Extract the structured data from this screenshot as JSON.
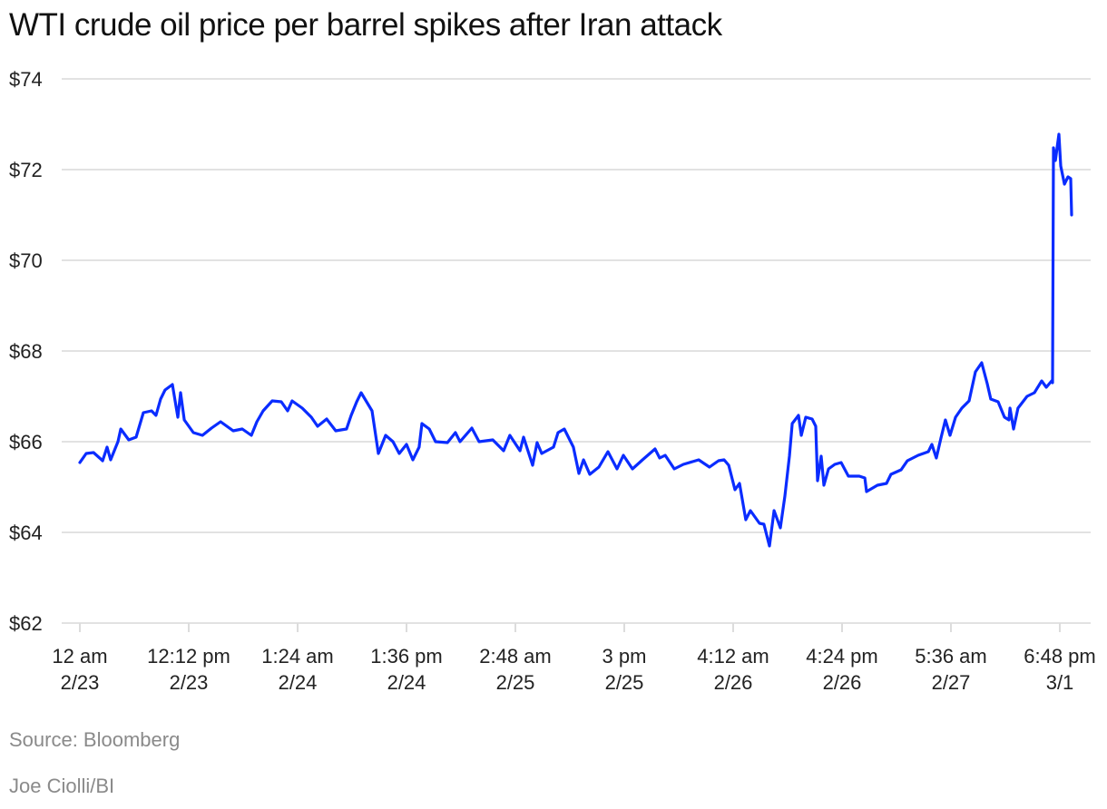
{
  "chart_data": {
    "type": "line",
    "title": "WTI crude oil price per barrel spikes after Iran attack",
    "xlabel": "",
    "ylabel": "",
    "ylim": [
      62,
      74
    ],
    "y_ticks": [
      {
        "value": 62,
        "label": "$62"
      },
      {
        "value": 64,
        "label": "$64"
      },
      {
        "value": 66,
        "label": "$66"
      },
      {
        "value": 68,
        "label": "$68"
      },
      {
        "value": 70,
        "label": "$70"
      },
      {
        "value": 72,
        "label": "$72"
      },
      {
        "value": 74,
        "label": "$74"
      }
    ],
    "x_ticks": [
      {
        "time": "2/23 00:00",
        "line1": "12 am",
        "line2": "2/23"
      },
      {
        "time": "2/23 12:12",
        "line1": "12:12 pm",
        "line2": "2/23"
      },
      {
        "time": "2/24 01:24",
        "line1": "1:24 am",
        "line2": "2/24"
      },
      {
        "time": "2/24 13:36",
        "line1": "1:36 pm",
        "line2": "2/24"
      },
      {
        "time": "2/25 02:48",
        "line1": "2:48 am",
        "line2": "2/25"
      },
      {
        "time": "2/25 15:00",
        "line1": "3 pm",
        "line2": "2/25"
      },
      {
        "time": "2/26 04:12",
        "line1": "4:12 am",
        "line2": "2/26"
      },
      {
        "time": "2/26 16:24",
        "line1": "4:24 pm",
        "line2": "2/26"
      },
      {
        "time": "2/27 05:36",
        "line1": "5:36 am",
        "line2": "2/27"
      },
      {
        "time": "3/1 18:48",
        "line1": "6:48 pm",
        "line2": "3/1"
      }
    ],
    "grid": true,
    "line_color": "#0a2cff",
    "series": [
      {
        "points": [
          [
            "2/23 00:00",
            65.54
          ],
          [
            "2/23 00:43",
            65.74
          ],
          [
            "2/23 01:32",
            65.76
          ],
          [
            "2/23 02:33",
            65.58
          ],
          [
            "2/23 03:03",
            65.88
          ],
          [
            "2/23 03:27",
            65.6
          ],
          [
            "2/23 04:16",
            66.0
          ],
          [
            "2/23 04:35",
            66.28
          ],
          [
            "2/23 05:29",
            66.04
          ],
          [
            "2/23 06:18",
            66.1
          ],
          [
            "2/23 07:07",
            66.64
          ],
          [
            "2/23 08:02",
            66.68
          ],
          [
            "2/23 08:32",
            66.58
          ],
          [
            "2/23 09:03",
            66.94
          ],
          [
            "2/23 09:33",
            67.14
          ],
          [
            "2/23 10:22",
            67.26
          ],
          [
            "2/23 10:59",
            66.54
          ],
          [
            "2/23 11:17",
            67.08
          ],
          [
            "2/23 11:42",
            66.48
          ],
          [
            "2/23 12:43",
            66.2
          ],
          [
            "2/23 13:44",
            66.14
          ],
          [
            "2/23 14:45",
            66.3
          ],
          [
            "2/23 15:46",
            66.44
          ],
          [
            "2/23 18:11",
            66.24
          ],
          [
            "2/23 19:12",
            66.28
          ],
          [
            "2/23 20:13",
            66.14
          ],
          [
            "2/23 20:50",
            66.44
          ],
          [
            "2/23 21:32",
            66.68
          ],
          [
            "2/23 22:33",
            66.9
          ],
          [
            "2/23 23:34",
            66.88
          ],
          [
            "2/24 00:17",
            66.68
          ],
          [
            "2/24 00:47",
            66.9
          ],
          [
            "2/24 01:55",
            66.74
          ],
          [
            "2/24 02:56",
            66.54
          ],
          [
            "2/24 03:38",
            66.34
          ],
          [
            "2/24 04:39",
            66.5
          ],
          [
            "2/24 05:40",
            66.24
          ],
          [
            "2/24 06:53",
            66.28
          ],
          [
            "2/24 07:24",
            66.58
          ],
          [
            "2/24 08:01",
            66.88
          ],
          [
            "2/24 08:31",
            67.08
          ],
          [
            "2/24 09:44",
            66.68
          ],
          [
            "2/24 10:27",
            65.74
          ],
          [
            "2/24 11:16",
            66.14
          ],
          [
            "2/24 12:05",
            66.0
          ],
          [
            "2/24 12:47",
            65.74
          ],
          [
            "2/24 13:36",
            65.94
          ],
          [
            "2/24 14:19",
            65.6
          ],
          [
            "2/24 15:01",
            65.88
          ],
          [
            "2/24 15:20",
            66.4
          ],
          [
            "2/24 16:09",
            66.28
          ],
          [
            "2/24 16:51",
            66.0
          ],
          [
            "2/24 19:11",
            65.98
          ],
          [
            "2/24 20:05",
            66.2
          ],
          [
            "2/24 20:36",
            66.0
          ],
          [
            "2/24 21:55",
            66.3
          ],
          [
            "2/24 22:44",
            66.0
          ],
          [
            "2/25 00:16",
            66.04
          ],
          [
            "2/25 01:29",
            65.8
          ],
          [
            "2/25 02:11",
            66.14
          ],
          [
            "2/25 03:19",
            65.8
          ],
          [
            "2/25 03:43",
            66.1
          ],
          [
            "2/25 04:44",
            65.48
          ],
          [
            "2/25 05:14",
            65.98
          ],
          [
            "2/25 05:45",
            65.74
          ],
          [
            "2/25 07:04",
            65.88
          ],
          [
            "2/25 07:35",
            66.2
          ],
          [
            "2/25 08:17",
            66.28
          ],
          [
            "2/25 09:18",
            65.88
          ],
          [
            "2/25 09:55",
            65.3
          ],
          [
            "2/25 10:26",
            65.6
          ],
          [
            "2/25 11:08",
            65.28
          ],
          [
            "2/25 12:09",
            65.44
          ],
          [
            "2/25 13:10",
            65.78
          ],
          [
            "2/25 14:11",
            65.4
          ],
          [
            "2/25 14:54",
            65.7
          ],
          [
            "2/25 15:55",
            65.4
          ],
          [
            "2/25 16:56",
            65.58
          ],
          [
            "2/25 19:27",
            65.84
          ],
          [
            "2/25 19:58",
            65.64
          ],
          [
            "2/25 20:35",
            65.7
          ],
          [
            "2/25 21:36",
            65.4
          ],
          [
            "2/25 22:37",
            65.5
          ],
          [
            "2/26 00:20",
            65.6
          ],
          [
            "2/26 01:33",
            65.44
          ],
          [
            "2/26 02:34",
            65.58
          ],
          [
            "2/26 03:11",
            65.6
          ],
          [
            "2/26 03:42",
            65.48
          ],
          [
            "2/26 04:24",
            64.94
          ],
          [
            "2/26 04:55",
            65.08
          ],
          [
            "2/26 05:37",
            64.28
          ],
          [
            "2/26 06:08",
            64.48
          ],
          [
            "2/26 07:09",
            64.2
          ],
          [
            "2/26 07:39",
            64.18
          ],
          [
            "2/26 08:16",
            63.7
          ],
          [
            "2/26 08:47",
            64.48
          ],
          [
            "2/26 09:29",
            64.1
          ],
          [
            "2/26 10:00",
            64.8
          ],
          [
            "2/26 10:30",
            65.68
          ],
          [
            "2/26 10:49",
            66.4
          ],
          [
            "2/26 11:31",
            66.58
          ],
          [
            "2/26 11:50",
            66.14
          ],
          [
            "2/26 12:20",
            66.54
          ],
          [
            "2/26 13:03",
            66.5
          ],
          [
            "2/26 13:27",
            66.34
          ],
          [
            "2/26 13:39",
            65.14
          ],
          [
            "2/26 14:04",
            65.68
          ],
          [
            "2/26 14:22",
            65.04
          ],
          [
            "2/26 14:53",
            65.4
          ],
          [
            "2/26 15:35",
            65.5
          ],
          [
            "2/26 16:18",
            65.54
          ],
          [
            "2/26 18:07",
            65.24
          ],
          [
            "2/26 19:20",
            65.24
          ],
          [
            "2/26 19:57",
            65.2
          ],
          [
            "2/26 20:09",
            64.9
          ],
          [
            "2/26 21:22",
            65.04
          ],
          [
            "2/26 22:23",
            65.08
          ],
          [
            "2/26 22:53",
            65.28
          ],
          [
            "2/27 00:01",
            65.38
          ],
          [
            "2/27 00:43",
            65.58
          ],
          [
            "2/27 01:56",
            65.7
          ],
          [
            "2/27 03:04",
            65.78
          ],
          [
            "2/27 03:28",
            65.94
          ],
          [
            "2/27 03:58",
            65.64
          ],
          [
            "2/27 04:29",
            66.08
          ],
          [
            "2/27 04:59",
            66.48
          ],
          [
            "2/27 05:30",
            66.14
          ],
          [
            "2/27 06:07",
            66.54
          ],
          [
            "2/27 06:49",
            66.74
          ],
          [
            "2/27 07:38",
            66.9
          ],
          [
            "2/27 08:21",
            67.54
          ],
          [
            "2/27 09:03",
            67.74
          ],
          [
            "2/27 09:40",
            67.28
          ],
          [
            "2/27 10:04",
            66.94
          ],
          [
            "2/27 10:53",
            66.88
          ],
          [
            "2/27 11:36",
            66.54
          ],
          [
            "2/27 12:06",
            66.48
          ],
          [
            "2/27 12:13",
            66.74
          ],
          [
            "2/27 12:37",
            66.28
          ],
          [
            "2/27 13:07",
            66.74
          ],
          [
            "2/27 14:08",
            67.0
          ],
          [
            "2/27 14:57",
            67.08
          ],
          [
            "2/27 15:46",
            67.34
          ],
          [
            "2/27 16:17",
            67.2
          ],
          [
            "2/27 16:53",
            67.34
          ],
          [
            "2/27 16:59",
            67.3
          ],
          [
            "3/1 18:05",
            72.48
          ],
          [
            "3/1 18:18",
            72.2
          ],
          [
            "3/1 18:42",
            72.78
          ],
          [
            "3/1 18:54",
            72.08
          ],
          [
            "3/1 19:19",
            71.68
          ],
          [
            "3/1 19:43",
            71.84
          ],
          [
            "3/1 20:01",
            71.8
          ],
          [
            "3/1 20:07",
            71.0
          ]
        ]
      }
    ]
  },
  "footer": {
    "source": "Source: Bloomberg",
    "credit": "Joe Ciolli/BI"
  }
}
